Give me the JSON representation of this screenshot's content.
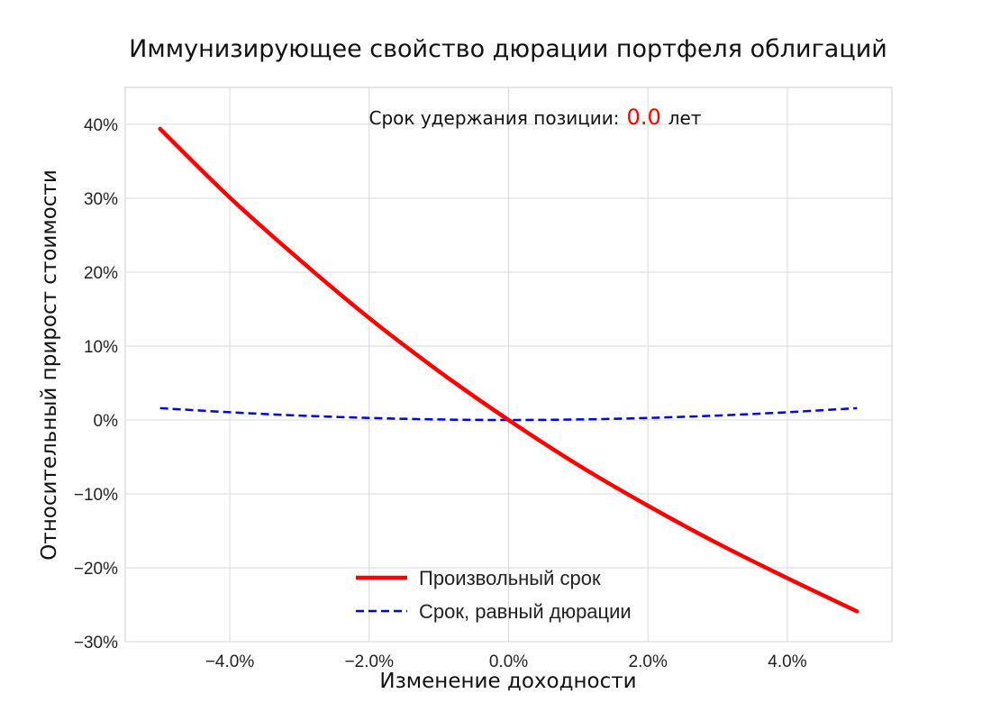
{
  "chart_data": {
    "type": "line",
    "title": "Иммунизирующее свойство дюрации портфеля облигаций",
    "xlabel": "Изменение доходности",
    "ylabel": "Относительный прирост стоимости",
    "xlim": [
      -5.5,
      5.5
    ],
    "ylim": [
      -30,
      45
    ],
    "xticks": [
      -4,
      -2,
      0,
      2,
      4
    ],
    "xtick_labels": [
      "−4.0%",
      "−2.0%",
      "0.0%",
      "2.0%",
      "4.0%"
    ],
    "yticks": [
      -30,
      -20,
      -10,
      0,
      10,
      20,
      30,
      40
    ],
    "ytick_labels": [
      "−30%",
      "−20%",
      "−10%",
      "0%",
      "10%",
      "20%",
      "30%",
      "40%"
    ],
    "grid": true,
    "legend_position": "bottom-center",
    "annotation": {
      "prefix": "Срок удержания позиции:",
      "value": "0.0",
      "suffix": "лет",
      "value_color": "#ff0000"
    },
    "x": [
      -5,
      -4,
      -3,
      -2,
      -1,
      0,
      1,
      2,
      3,
      4,
      5
    ],
    "series": [
      {
        "name": "Произвольный срок",
        "color": "#ff0000",
        "style": "solid",
        "values": [
          39.4,
          30.1,
          21.7,
          13.8,
          6.6,
          0.0,
          -6.1,
          -11.6,
          -16.7,
          -21.4,
          -25.9
        ]
      },
      {
        "name": "Срок, равный дюрации",
        "color": "#0000ee",
        "style": "dashed",
        "values": [
          1.6,
          1.05,
          0.6,
          0.28,
          0.07,
          0.0,
          0.07,
          0.28,
          0.6,
          1.05,
          1.6
        ]
      }
    ]
  }
}
